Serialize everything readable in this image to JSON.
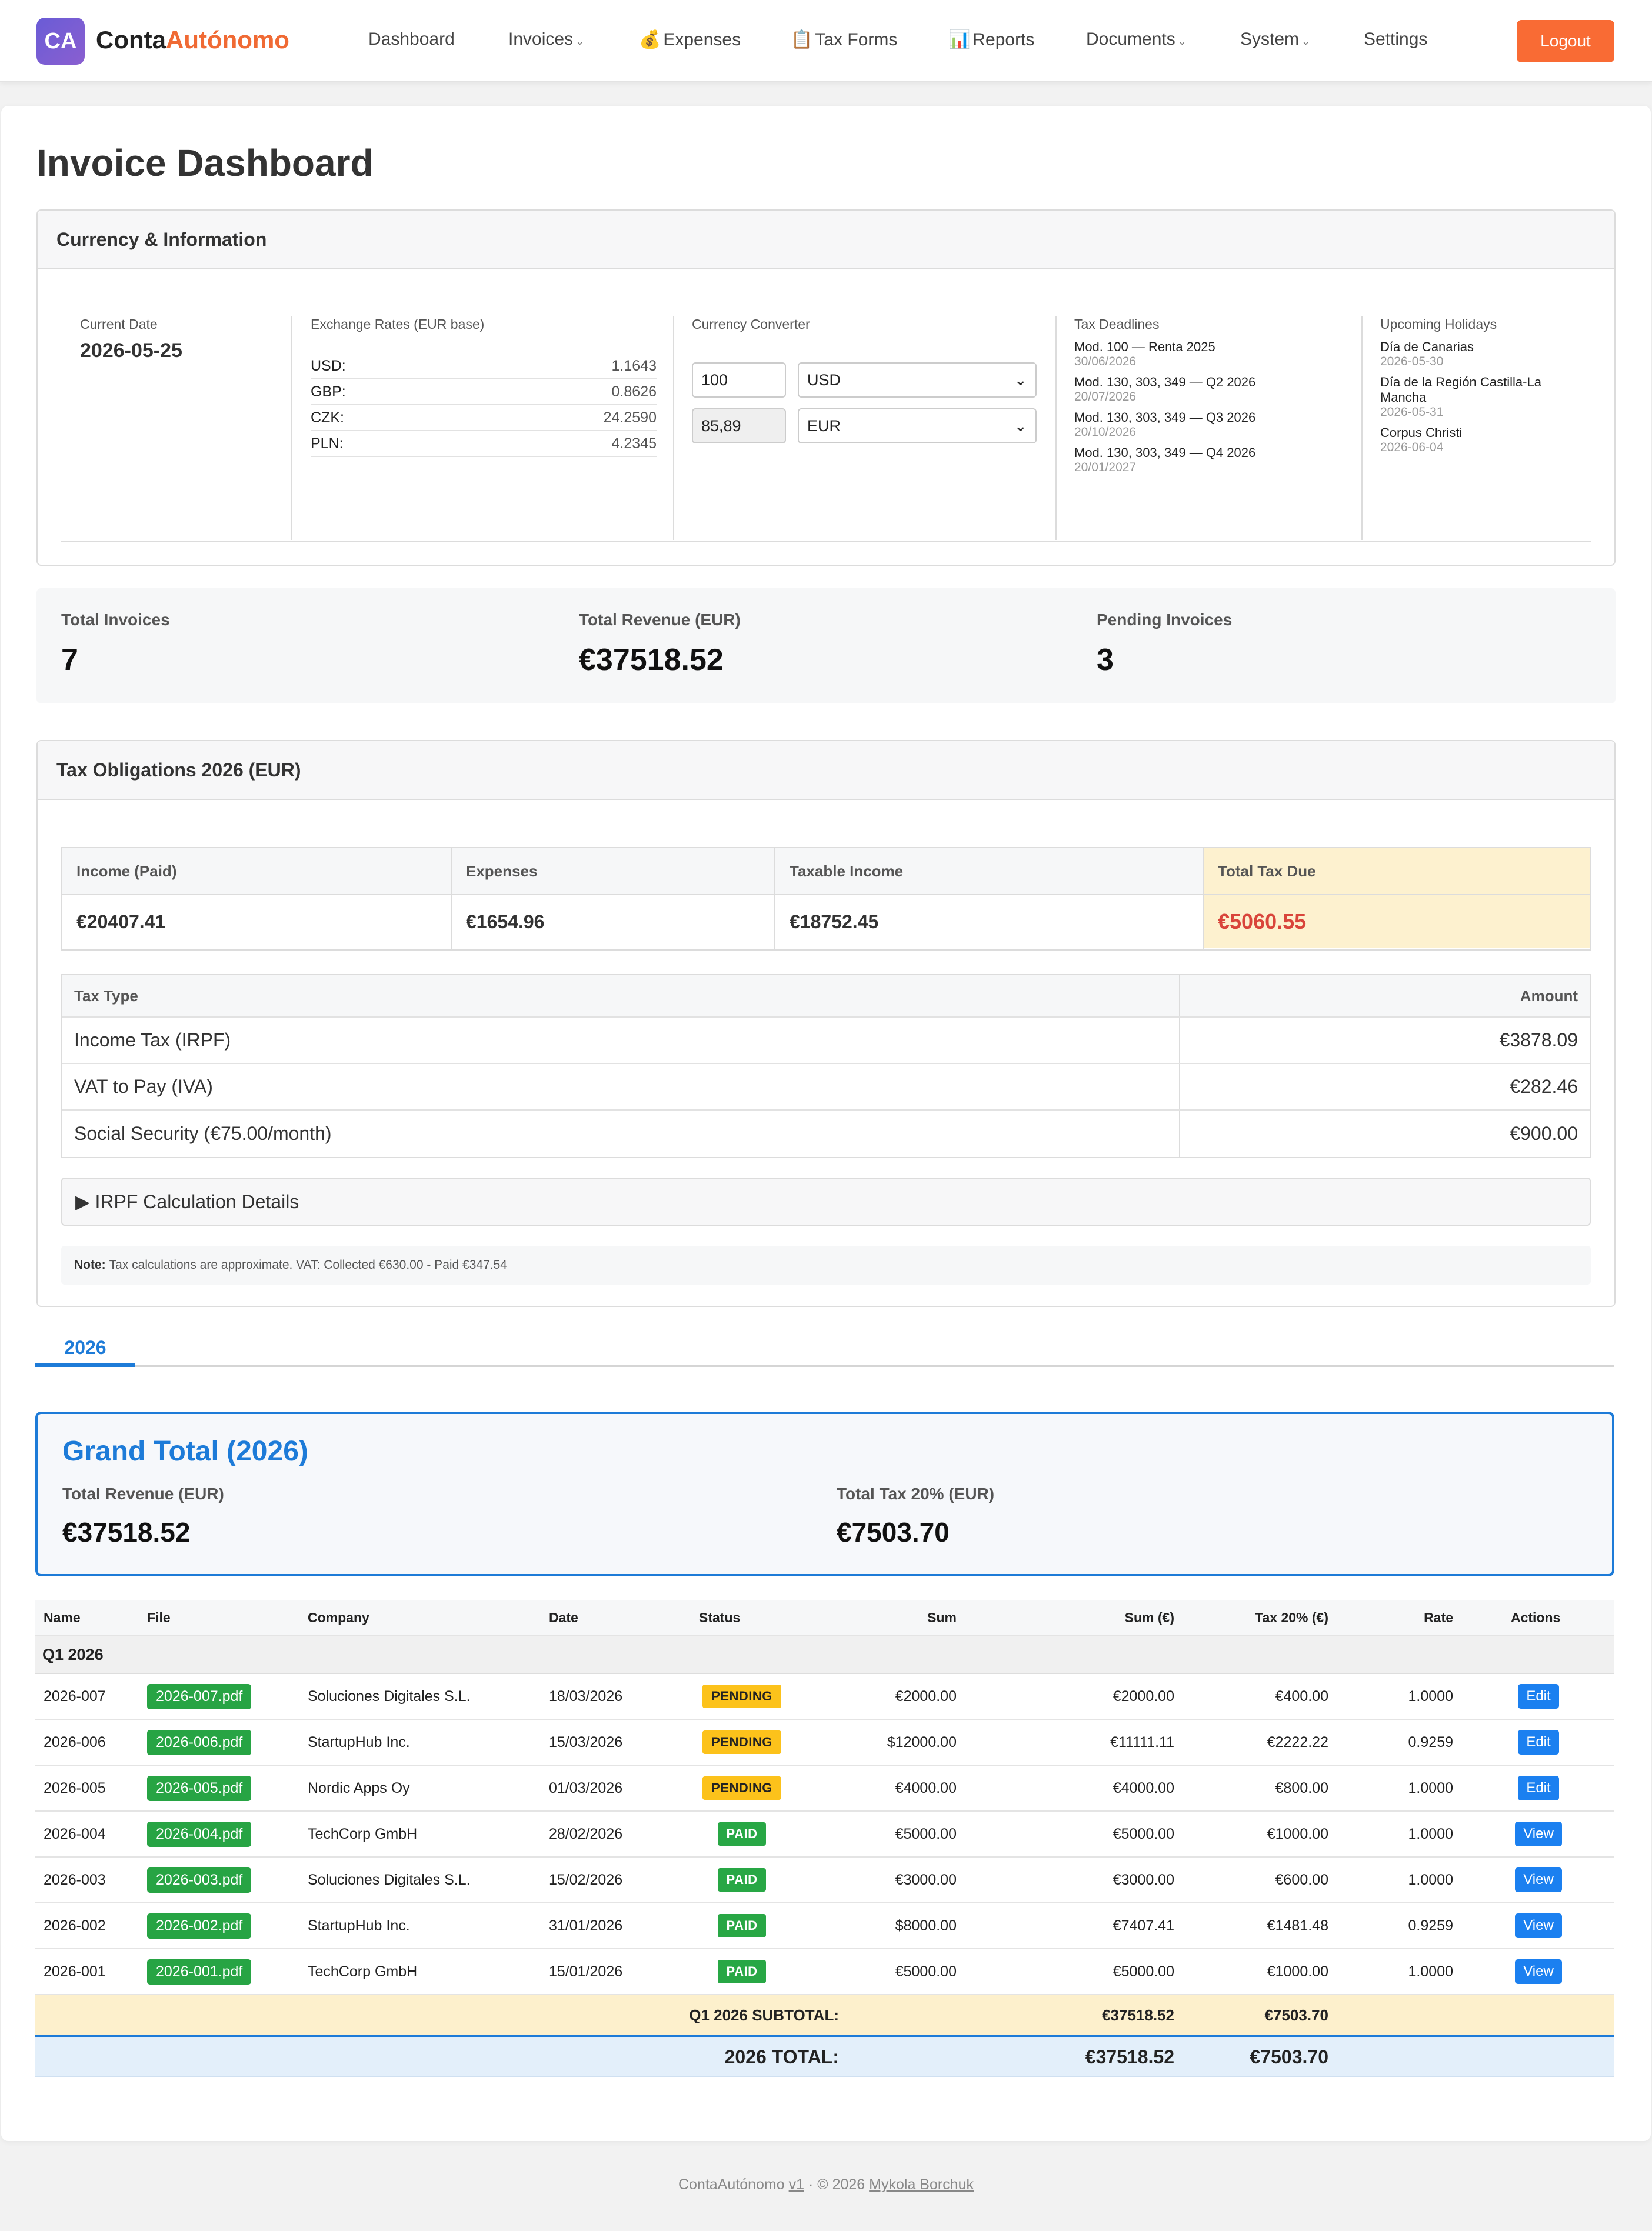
{
  "nav": {
    "logo": "CA",
    "brand_main": "Conta",
    "brand_accent": "Autónomo",
    "items": [
      {
        "label": "Dashboard",
        "icon": "",
        "caret": false
      },
      {
        "label": "Invoices",
        "icon": "",
        "caret": true
      },
      {
        "label": "Expenses",
        "icon": "💰",
        "caret": false
      },
      {
        "label": "Tax Forms",
        "icon": "📋",
        "caret": false
      },
      {
        "label": "Reports",
        "icon": "📊",
        "caret": false
      },
      {
        "label": "Documents",
        "icon": "",
        "caret": true
      },
      {
        "label": "System",
        "icon": "",
        "caret": true
      },
      {
        "label": "Settings",
        "icon": "",
        "caret": false
      }
    ],
    "caret_glyph": "⌄",
    "logout": "Logout"
  },
  "page": {
    "title": "Invoice Dashboard"
  },
  "info": {
    "title": "Currency & Information",
    "current_date_label": "Current Date",
    "current_date": "2026-05-25",
    "rates_label": "Exchange Rates (EUR base)",
    "rates": [
      {
        "code": "USD:",
        "value": "1.1643"
      },
      {
        "code": "GBP:",
        "value": "0.8626"
      },
      {
        "code": "CZK:",
        "value": "24.2590"
      },
      {
        "code": "PLN:",
        "value": "4.2345"
      }
    ],
    "converter_label": "Currency Converter",
    "converter_amount": "100",
    "converter_from": "USD",
    "converter_result": "85,89",
    "converter_to": "EUR",
    "deadlines_label": "Tax Deadlines",
    "deadlines": [
      {
        "title": "Mod. 100 — Renta 2025",
        "date": "30/06/2026"
      },
      {
        "title": "Mod. 130, 303, 349 — Q2 2026",
        "date": "20/07/2026"
      },
      {
        "title": "Mod. 130, 303, 349 — Q3 2026",
        "date": "20/10/2026"
      },
      {
        "title": "Mod. 130, 303, 349 — Q4 2026",
        "date": "20/01/2027"
      }
    ],
    "holidays_label": "Upcoming Holidays",
    "holidays": [
      {
        "title": "Día de Canarias",
        "date": "2026-05-30"
      },
      {
        "title": "Día de la Región Castilla-La Mancha",
        "date": "2026-05-31"
      },
      {
        "title": "Corpus Christi",
        "date": "2026-06-04"
      }
    ]
  },
  "stats": {
    "total_invoices_label": "Total Invoices",
    "total_invoices": "7",
    "total_revenue_label": "Total Revenue (EUR)",
    "total_revenue": "€37518.52",
    "pending_label": "Pending Invoices",
    "pending": "3"
  },
  "tax": {
    "title": "Tax Obligations 2026 (EUR)",
    "summary": [
      {
        "label": "Income (Paid)",
        "value": "€20407.41"
      },
      {
        "label": "Expenses",
        "value": "€1654.96"
      },
      {
        "label": "Taxable Income",
        "value": "€18752.45"
      },
      {
        "label": "Total Tax Due",
        "value": "€5060.55"
      }
    ],
    "type_header": "Tax Type",
    "amount_header": "Amount",
    "types": [
      {
        "name": "Income Tax (IRPF)",
        "amount": "€3878.09"
      },
      {
        "name": "VAT to Pay (IVA)",
        "amount": "€282.46"
      },
      {
        "name": "Social Security (€75.00/month)",
        "amount": "€900.00"
      }
    ],
    "details_label": "▶ IRPF Calculation Details",
    "note_label": "Note:",
    "note_text": "Tax calculations are approximate. VAT: Collected €630.00 - Paid €347.54"
  },
  "year_tab": "2026",
  "grand": {
    "title": "Grand Total (2026)",
    "revenue_label": "Total Revenue (EUR)",
    "revenue": "€37518.52",
    "tax_label": "Total Tax 20% (EUR)",
    "tax": "€7503.70"
  },
  "invoices": {
    "headers": {
      "name": "Name",
      "file": "File",
      "company": "Company",
      "date": "Date",
      "status": "Status",
      "sum": "Sum",
      "sum_eur": "Sum (€)",
      "tax": "Tax 20% (€)",
      "rate": "Rate",
      "actions": "Actions"
    },
    "group": "Q1 2026",
    "rows": [
      {
        "name": "2026-007",
        "file": "2026-007.pdf",
        "company": "Soluciones Digitales S.L.",
        "date": "18/03/2026",
        "status": "PENDING",
        "sum": "€2000.00",
        "sum_eur": "€2000.00",
        "tax": "€400.00",
        "rate": "1.0000",
        "action": "Edit"
      },
      {
        "name": "2026-006",
        "file": "2026-006.pdf",
        "company": "StartupHub Inc.",
        "date": "15/03/2026",
        "status": "PENDING",
        "sum": "$12000.00",
        "sum_eur": "€11111.11",
        "tax": "€2222.22",
        "rate": "0.9259",
        "action": "Edit"
      },
      {
        "name": "2026-005",
        "file": "2026-005.pdf",
        "company": "Nordic Apps Oy",
        "date": "01/03/2026",
        "status": "PENDING",
        "sum": "€4000.00",
        "sum_eur": "€4000.00",
        "tax": "€800.00",
        "rate": "1.0000",
        "action": "Edit"
      },
      {
        "name": "2026-004",
        "file": "2026-004.pdf",
        "company": "TechCorp GmbH",
        "date": "28/02/2026",
        "status": "PAID",
        "sum": "€5000.00",
        "sum_eur": "€5000.00",
        "tax": "€1000.00",
        "rate": "1.0000",
        "action": "View"
      },
      {
        "name": "2026-003",
        "file": "2026-003.pdf",
        "company": "Soluciones Digitales S.L.",
        "date": "15/02/2026",
        "status": "PAID",
        "sum": "€3000.00",
        "sum_eur": "€3000.00",
        "tax": "€600.00",
        "rate": "1.0000",
        "action": "View"
      },
      {
        "name": "2026-002",
        "file": "2026-002.pdf",
        "company": "StartupHub Inc.",
        "date": "31/01/2026",
        "status": "PAID",
        "sum": "$8000.00",
        "sum_eur": "€7407.41",
        "tax": "€1481.48",
        "rate": "0.9259",
        "action": "View"
      },
      {
        "name": "2026-001",
        "file": "2026-001.pdf",
        "company": "TechCorp GmbH",
        "date": "15/01/2026",
        "status": "PAID",
        "sum": "€5000.00",
        "sum_eur": "€5000.00",
        "tax": "€1000.00",
        "rate": "1.0000",
        "action": "View"
      }
    ],
    "subtotal_label": "Q1 2026 SUBTOTAL:",
    "subtotal_sum": "€37518.52",
    "subtotal_tax": "€7503.70",
    "total_label": "2026 TOTAL:",
    "total_sum": "€37518.52",
    "total_tax": "€7503.70"
  },
  "footer": {
    "app": "ContaAutónomo",
    "version": "v1",
    "copyright": "· © 2026",
    "author": "Mykola Borchuk"
  },
  "colors": {
    "brand_accent": "#f06a34",
    "primary_blue": "#1d7bd8",
    "logout": "#f96b34",
    "pending": "#fcc21b",
    "paid": "#28a745",
    "tax_due": "#d9453b"
  }
}
